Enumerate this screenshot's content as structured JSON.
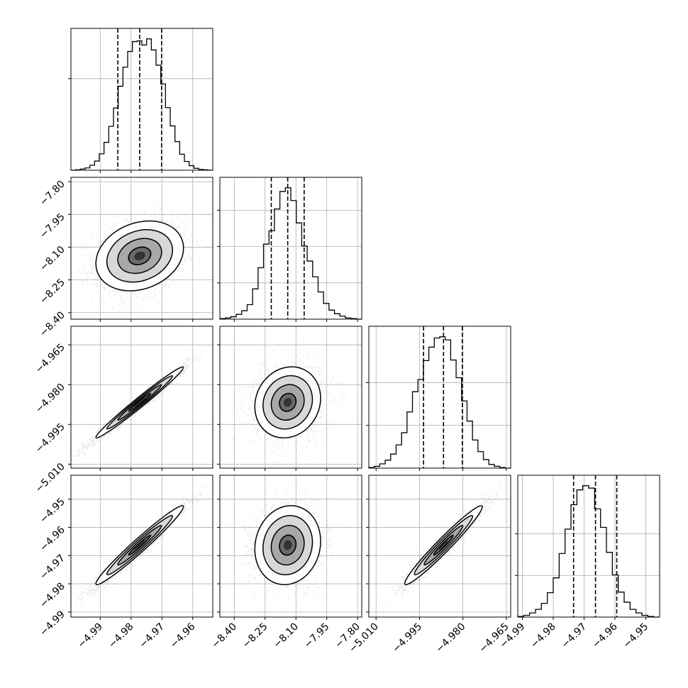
{
  "chart_data": {
    "type": "corner",
    "grid": true,
    "parameters": [
      {
        "index": 0,
        "x_range": [
          -4.9995,
          -4.9535
        ],
        "ticks": [
          -4.99,
          -4.98,
          -4.97,
          -4.96
        ],
        "tick_labels": [
          "−4.99",
          "−4.98",
          "−4.97",
          "−4.96"
        ],
        "quantiles": [
          -4.9843,
          -4.9772,
          -4.9701
        ],
        "hist_bins": [
          0,
          1,
          3,
          6,
          13,
          24,
          43,
          73,
          115,
          163,
          220,
          270,
          311,
          337,
          339,
          328,
          344,
          315,
          275,
          226,
          164,
          116,
          75,
          42,
          23,
          12,
          5,
          2,
          1,
          0
        ]
      },
      {
        "index": 1,
        "y_range": [
          -8.43,
          -7.78
        ],
        "x_range": [
          -8.47,
          -7.78
        ],
        "ticks": [
          -8.4,
          -8.25,
          -8.1,
          -7.95,
          -7.8
        ],
        "tick_labels": [
          "−8.40",
          "−8.25",
          "−8.10",
          "−7.95",
          "−7.80"
        ],
        "quantiles": [
          -8.22,
          -8.14,
          -8.06
        ],
        "hist_bins": [
          1,
          2,
          4,
          8,
          14,
          24,
          50,
          85,
          124,
          146,
          182,
          211,
          217,
          196,
          159,
          121,
          96,
          70,
          45,
          26,
          15,
          9,
          5,
          2,
          1,
          0
        ]
      },
      {
        "index": 2,
        "y_range": [
          -5.0115,
          -4.958
        ],
        "x_range": [
          -5.0125,
          -4.9635
        ],
        "ticks": [
          -5.01,
          -4.995,
          -4.98,
          -4.965
        ],
        "tick_labels": [
          "−5.010",
          "−4.995",
          "−4.980",
          "−4.965"
        ],
        "quantiles": [
          -4.9936,
          -4.9867,
          -4.9802
        ],
        "hist_bins": [
          1,
          3,
          7,
          13,
          23,
          38,
          58,
          92,
          125,
          145,
          176,
          198,
          213,
          215,
          210,
          177,
          148,
          110,
          77,
          46,
          27,
          14,
          6,
          3,
          1,
          0
        ]
      },
      {
        "index": 3,
        "y_range": [
          -4.9918,
          -4.9415
        ],
        "x_range": [
          -4.9915,
          -4.9455
        ],
        "ticks": [
          -4.99,
          -4.98,
          -4.97,
          -4.96,
          -4.95
        ],
        "tick_labels_y": [
          "−4.99",
          "−4.98",
          "−4.97",
          "−4.96",
          "−4.95"
        ],
        "tick_labels_x": [
          "−4.99",
          "−4.98",
          "−4.97",
          "−4.96",
          "−4.95"
        ],
        "quantiles": [
          -4.9734,
          -4.9663,
          -4.9594
        ],
        "hist_bins": [
          1,
          3,
          7,
          13,
          23,
          41,
          66,
          107,
          148,
          189,
          214,
          221,
          217,
          182,
          151,
          109,
          71,
          42,
          25,
          13,
          7,
          3,
          1,
          0
        ]
      }
    ],
    "y_tick_values": {
      "hist_0": [
        240,
        480
      ],
      "hist_1": [
        60,
        120,
        180
      ],
      "hist_2": [
        70,
        140
      ],
      "hist_3": [
        70,
        140
      ]
    },
    "correlations": {
      "1-0": 0.22,
      "2-0": 0.985,
      "2-1": 0.12,
      "3-0": 0.975,
      "3-1": 0.1,
      "3-2": 0.97
    },
    "colors": {
      "line": "#000000",
      "grid": "#b0b0b0",
      "points": "#555555"
    }
  }
}
